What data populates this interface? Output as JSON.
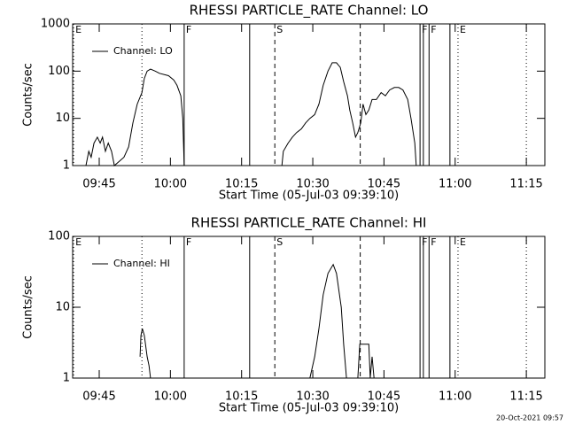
{
  "chart_data": [
    {
      "type": "line",
      "title": "RHESSI PARTICLE_RATE Channel: LO",
      "xlabel": "Start Time (05-Jul-03 09:39:10)",
      "ylabel": "Counts/sec",
      "xlim": [
        579.4,
        678.9
      ],
      "ylim": [
        1,
        1000
      ],
      "log_y": true,
      "xticks": [
        {
          "value": 585,
          "label": "09:45"
        },
        {
          "value": 600,
          "label": "10:00"
        },
        {
          "value": 615,
          "label": "10:15"
        },
        {
          "value": 630,
          "label": "10:30"
        },
        {
          "value": 645,
          "label": "10:45"
        },
        {
          "value": 660,
          "label": "11:00"
        },
        {
          "value": 675,
          "label": "11:15"
        }
      ],
      "yticks": [
        1,
        10,
        100,
        1000
      ],
      "legend": "upper left",
      "markers": [
        {
          "x": 579.6,
          "style": "dotted",
          "label": "E"
        },
        {
          "x": 594,
          "style": "dotted"
        },
        {
          "x": 602.9,
          "style": "solid",
          "label": "F"
        },
        {
          "x": 616.7,
          "style": "solid"
        },
        {
          "x": 622,
          "style": "dashed",
          "label": "S"
        },
        {
          "x": 640,
          "style": "dashed"
        },
        {
          "x": 652.6,
          "style": "solid",
          "label": "F"
        },
        {
          "x": 653.3,
          "style": "solid"
        },
        {
          "x": 654.5,
          "style": "solid",
          "label": "F"
        },
        {
          "x": 658.9,
          "style": "solid"
        },
        {
          "x": 660.6,
          "style": "dotted",
          "label": "E"
        },
        {
          "x": 675,
          "style": "dotted"
        }
      ],
      "series": [
        {
          "name": "Channel: LO",
          "color": "#000000",
          "x": [
            582.2,
            582.8,
            583.3,
            583.9,
            584.6,
            585.2,
            585.7,
            586.3,
            586.9,
            587.6,
            588.2,
            590.2,
            591.2,
            592.1,
            593.0,
            594.0,
            594.5,
            595.1,
            595.8,
            596.8,
            597.7,
            599.6,
            600.7,
            601.4,
            602.2,
            602.6,
            602.9,
            603.5,
            623.5,
            623.8,
            624.8,
            625.7,
            626.6,
            627.6,
            628.5,
            629.4,
            630.4,
            631.3,
            632.2,
            633.2,
            634.1,
            635.0,
            635.8,
            636.5,
            637.3,
            637.8,
            638.4,
            639.0,
            639.5,
            640.1,
            640.6,
            641.2,
            641.8,
            642.5,
            643.4,
            644.4,
            645.3,
            646.2,
            647.2,
            648.1,
            649.0,
            650.0,
            650.7,
            651.5,
            651.8
          ],
          "values": [
            1,
            2,
            1.5,
            3,
            4,
            3,
            4,
            2,
            3,
            2,
            1,
            1.5,
            2.5,
            8,
            20,
            35,
            70,
            100,
            110,
            100,
            90,
            80,
            65,
            50,
            30,
            10,
            1,
            null,
            1,
            2,
            3,
            4,
            5,
            6,
            8,
            10,
            12,
            20,
            50,
            100,
            150,
            150,
            120,
            60,
            30,
            15,
            8,
            4,
            5,
            8,
            20,
            12,
            15,
            25,
            25,
            35,
            30,
            40,
            45,
            45,
            40,
            25,
            10,
            3,
            1
          ]
        }
      ]
    },
    {
      "type": "line",
      "title": "RHESSI PARTICLE_RATE Channel: HI",
      "xlabel": "Start Time (05-Jul-03 09:39:10)",
      "ylabel": "Counts/sec",
      "xlim": [
        579.4,
        678.9
      ],
      "ylim": [
        1,
        100
      ],
      "log_y": true,
      "xticks": [
        {
          "value": 585,
          "label": "09:45"
        },
        {
          "value": 600,
          "label": "10:00"
        },
        {
          "value": 615,
          "label": "10:15"
        },
        {
          "value": 630,
          "label": "10:30"
        },
        {
          "value": 645,
          "label": "10:45"
        },
        {
          "value": 660,
          "label": "11:00"
        },
        {
          "value": 675,
          "label": "11:15"
        }
      ],
      "yticks": [
        1,
        10,
        100
      ],
      "legend": "upper left",
      "markers": [
        {
          "x": 579.6,
          "style": "dotted",
          "label": "E"
        },
        {
          "x": 594,
          "style": "dotted"
        },
        {
          "x": 602.9,
          "style": "solid",
          "label": "F"
        },
        {
          "x": 616.7,
          "style": "solid"
        },
        {
          "x": 622,
          "style": "dashed",
          "label": "S"
        },
        {
          "x": 640,
          "style": "dashed"
        },
        {
          "x": 652.6,
          "style": "solid",
          "label": "F"
        },
        {
          "x": 653.3,
          "style": "solid"
        },
        {
          "x": 654.5,
          "style": "solid",
          "label": "F"
        },
        {
          "x": 658.9,
          "style": "solid"
        },
        {
          "x": 660.6,
          "style": "dotted",
          "label": "E"
        },
        {
          "x": 675,
          "style": "dotted"
        }
      ],
      "series": [
        {
          "name": "Channel: HI",
          "color": "#000000",
          "x": [
            593.6,
            593.8,
            594.1,
            594.5,
            595.1,
            595.5,
            595.8,
            600,
            629.4,
            630.4,
            631.3,
            632.2,
            633.2,
            634.3,
            635.0,
            636.0,
            636.5,
            637.1,
            638,
            639.5,
            639.9,
            641.8,
            642.1,
            642.5,
            642.9
          ],
          "values": [
            2,
            4,
            5,
            4,
            2,
            1.5,
            1,
            null,
            1,
            2,
            5,
            15,
            30,
            40,
            30,
            10,
            3,
            1,
            null,
            1,
            3,
            3,
            1,
            2,
            1
          ]
        }
      ]
    }
  ],
  "footer": "20-Oct-2021 09:57"
}
